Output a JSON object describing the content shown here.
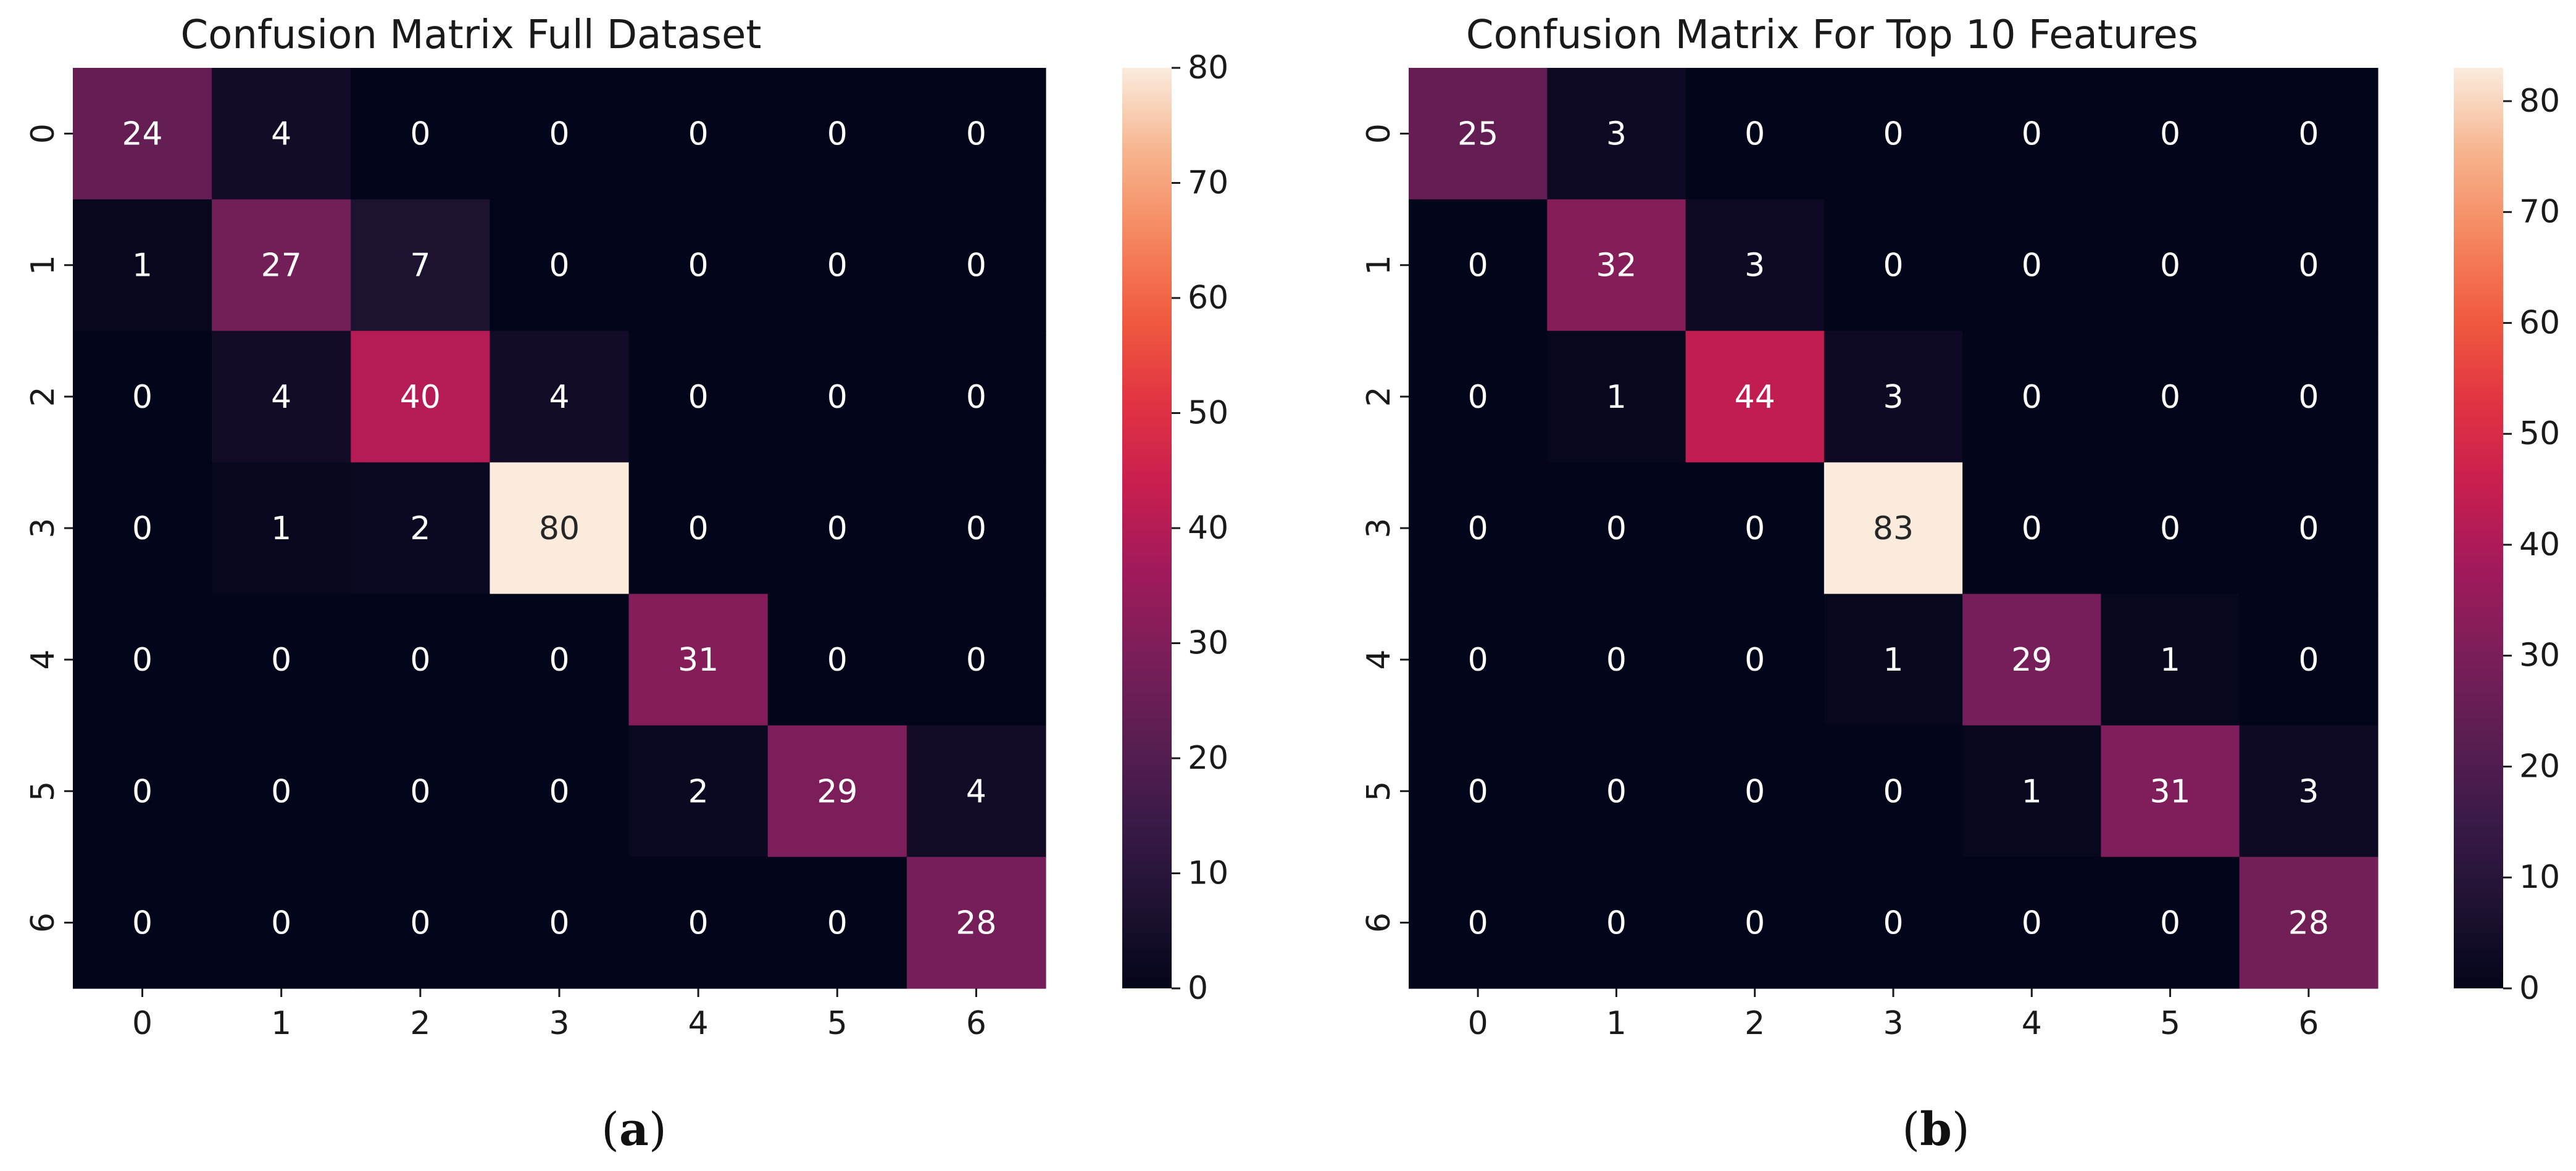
{
  "chart_data": [
    {
      "type": "heatmap",
      "title": "Confusion Matrix Full Dataset",
      "caption": "a",
      "x_ticks": [
        "0",
        "1",
        "2",
        "3",
        "4",
        "5",
        "6"
      ],
      "y_ticks": [
        "0",
        "1",
        "2",
        "3",
        "4",
        "5",
        "6"
      ],
      "matrix": [
        [
          24,
          4,
          0,
          0,
          0,
          0,
          0
        ],
        [
          1,
          27,
          7,
          0,
          0,
          0,
          0
        ],
        [
          0,
          4,
          40,
          4,
          0,
          0,
          0
        ],
        [
          0,
          1,
          2,
          80,
          0,
          0,
          0
        ],
        [
          0,
          0,
          0,
          0,
          31,
          0,
          0
        ],
        [
          0,
          0,
          0,
          0,
          2,
          29,
          4
        ],
        [
          0,
          0,
          0,
          0,
          0,
          0,
          28
        ]
      ],
      "colorbar": {
        "min": 0,
        "max": 80,
        "ticks": [
          "0",
          "10",
          "20",
          "30",
          "40",
          "50",
          "60",
          "70",
          "80"
        ]
      }
    },
    {
      "type": "heatmap",
      "title": "Confusion Matrix For Top 10 Features",
      "caption": "b",
      "x_ticks": [
        "0",
        "1",
        "2",
        "3",
        "4",
        "5",
        "6"
      ],
      "y_ticks": [
        "0",
        "1",
        "2",
        "3",
        "4",
        "5",
        "6"
      ],
      "matrix": [
        [
          25,
          3,
          0,
          0,
          0,
          0,
          0
        ],
        [
          0,
          32,
          3,
          0,
          0,
          0,
          0
        ],
        [
          0,
          1,
          44,
          3,
          0,
          0,
          0
        ],
        [
          0,
          0,
          0,
          83,
          0,
          0,
          0
        ],
        [
          0,
          0,
          0,
          1,
          29,
          1,
          0
        ],
        [
          0,
          0,
          0,
          0,
          1,
          31,
          3
        ],
        [
          0,
          0,
          0,
          0,
          0,
          0,
          28
        ]
      ],
      "colorbar": {
        "min": 0,
        "max": 83,
        "ticks": [
          "0",
          "10",
          "20",
          "30",
          "40",
          "50",
          "60",
          "70",
          "80"
        ]
      }
    }
  ],
  "colors": {
    "colormap_rocket": [
      "#03051a",
      "#1f1232",
      "#3a1a48",
      "#5b1e51",
      "#7b1e5a",
      "#a11a5b",
      "#c81e4f",
      "#e13342",
      "#f05a3e",
      "#f5875f",
      "#f6b48e",
      "#faebdd"
    ],
    "text_dark": "#262626",
    "text_light": "#ffffff"
  }
}
